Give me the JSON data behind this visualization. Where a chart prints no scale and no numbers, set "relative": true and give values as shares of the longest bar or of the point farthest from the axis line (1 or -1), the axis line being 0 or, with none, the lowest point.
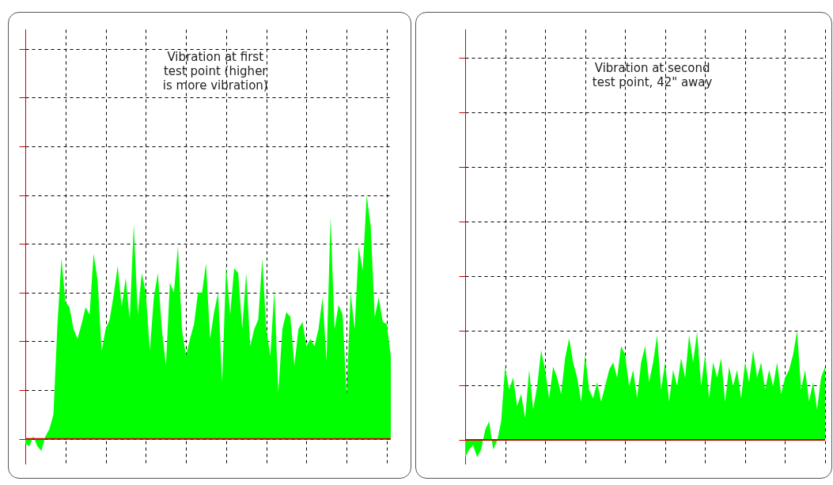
{
  "chart_data": [
    {
      "type": "area",
      "relative": true,
      "grid": true,
      "categories": [
        null,
        null,
        null,
        null,
        null,
        null,
        null,
        null,
        null,
        null,
        null,
        null,
        null,
        null,
        null,
        null,
        null,
        null,
        null,
        null,
        null,
        null,
        null,
        null,
        null,
        null,
        null,
        null,
        null,
        null,
        null,
        null,
        null,
        null,
        null,
        null,
        null,
        null,
        null,
        null,
        null,
        null,
        null,
        null,
        null,
        null,
        null,
        null,
        null,
        null,
        null,
        null,
        null,
        null,
        null,
        null,
        null,
        null,
        null,
        null,
        null,
        null,
        null,
        null,
        null,
        null,
        null,
        null,
        null,
        null,
        null,
        null,
        null,
        null,
        null,
        null,
        null,
        null,
        null,
        null,
        null,
        null,
        null,
        null,
        null,
        null,
        null,
        null,
        null,
        null,
        null,
        null
      ],
      "series": [
        {
          "color": "#00ff00",
          "values": [
            -0.02,
            -0.03,
            0.01,
            -0.03,
            -0.05,
            0.01,
            0.04,
            0.1,
            0.47,
            0.74,
            0.56,
            0.54,
            0.45,
            0.41,
            0.47,
            0.54,
            0.51,
            0.76,
            0.65,
            0.36,
            0.45,
            0.49,
            0.59,
            0.71,
            0.54,
            0.66,
            0.49,
            0.88,
            0.51,
            0.68,
            0.6,
            0.36,
            0.58,
            0.68,
            0.45,
            0.3,
            0.64,
            0.6,
            0.79,
            0.45,
            0.34,
            0.41,
            0.47,
            0.6,
            0.6,
            0.72,
            0.41,
            0.52,
            0.6,
            0.23,
            0.71,
            0.51,
            0.7,
            0.68,
            0.45,
            0.68,
            0.38,
            0.45,
            0.49,
            0.74,
            0.45,
            0.34,
            0.61,
            0.19,
            0.45,
            0.52,
            0.5,
            0.3,
            0.45,
            0.48,
            0.38,
            0.41,
            0.38,
            0.45,
            0.58,
            0.32,
            0.91,
            0.45,
            0.55,
            0.51,
            0.18,
            0.6,
            0.45,
            0.79,
            0.69,
            1.0,
            0.87,
            0.5,
            0.58,
            0.48,
            0.47,
            0.34
          ]
        }
      ],
      "annotations": [
        "Vibration at first test point (higher is more vibration)"
      ],
      "ref_lines": [
        {
          "axis": "y",
          "value": 0,
          "color": "#cc0000"
        }
      ]
    },
    {
      "type": "area",
      "relative": true,
      "grid": true,
      "categories": [
        null,
        null,
        null,
        null,
        null,
        null,
        null,
        null,
        null,
        null,
        null,
        null,
        null,
        null,
        null,
        null,
        null,
        null,
        null,
        null,
        null,
        null,
        null,
        null,
        null,
        null,
        null,
        null,
        null,
        null,
        null,
        null,
        null,
        null,
        null,
        null,
        null,
        null,
        null,
        null,
        null,
        null,
        null,
        null,
        null,
        null,
        null,
        null,
        null,
        null,
        null,
        null,
        null,
        null,
        null,
        null,
        null,
        null,
        null,
        null,
        null,
        null,
        null,
        null,
        null,
        null,
        null,
        null,
        null,
        null,
        null,
        null,
        null,
        null,
        null,
        null,
        null,
        null,
        null,
        null,
        null,
        null,
        null,
        null,
        null,
        null,
        null,
        null,
        null,
        null,
        null
      ],
      "series": [
        {
          "color": "#00ff00",
          "values": [
            -0.16,
            -0.09,
            -0.05,
            -0.16,
            -0.09,
            0.09,
            0.17,
            -0.09,
            -0.01,
            0.17,
            0.67,
            0.46,
            0.57,
            0.31,
            0.42,
            0.2,
            0.64,
            0.28,
            0.49,
            0.82,
            0.64,
            0.38,
            0.67,
            0.57,
            0.42,
            0.75,
            0.93,
            0.71,
            0.57,
            0.35,
            0.78,
            0.46,
            0.38,
            0.53,
            0.35,
            0.49,
            0.64,
            0.71,
            0.57,
            0.86,
            0.78,
            0.49,
            0.64,
            0.38,
            0.71,
            0.86,
            0.53,
            0.71,
            0.96,
            0.46,
            0.71,
            0.35,
            0.64,
            0.49,
            0.75,
            0.57,
            0.96,
            0.71,
            0.99,
            0.49,
            0.78,
            0.38,
            0.71,
            0.57,
            0.75,
            0.35,
            0.67,
            0.49,
            0.64,
            0.38,
            0.71,
            0.53,
            0.82,
            0.57,
            0.71,
            0.46,
            0.64,
            0.49,
            0.71,
            0.42,
            0.57,
            0.64,
            0.78,
            1.0,
            0.46,
            0.64,
            0.35,
            0.53,
            0.28,
            0.57,
            0.67
          ]
        }
      ],
      "annotations": [
        "Vibration at second test point, 42\" away"
      ],
      "ref_lines": [
        {
          "axis": "y",
          "value": 0,
          "color": "#cc0000"
        }
      ]
    }
  ]
}
